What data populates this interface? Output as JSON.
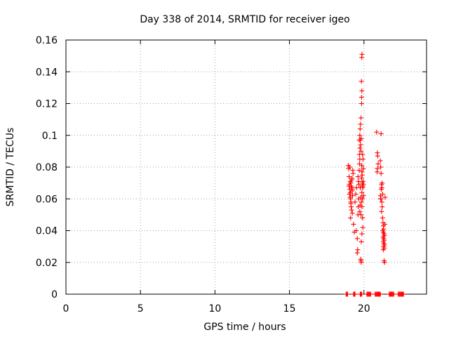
{
  "chart_data": {
    "type": "scatter",
    "title": "Day 338 of 2014, SRMTID for receiver igeo",
    "xlabel": "GPS time / hours",
    "ylabel": "SRMTID / TECUs",
    "xlim": [
      0,
      24.2
    ],
    "ylim": [
      0,
      0.16
    ],
    "xticks": [
      0,
      5,
      10,
      15,
      20
    ],
    "yticks": [
      0,
      0.02,
      0.04,
      0.06,
      0.08,
      0.1,
      0.12,
      0.14,
      0.16
    ],
    "ytick_labels": [
      "0",
      "0.02",
      "0.04",
      "0.06",
      "0.08",
      "0.1",
      "0.12",
      "0.14",
      "0.16"
    ],
    "xtick_labels": [
      "0",
      "5",
      "10",
      "15",
      "20"
    ],
    "grid": true,
    "legend": false,
    "marker": "+",
    "color": "#ff0000",
    "series": [
      {
        "values": [
          [
            18.95,
            0.081
          ],
          [
            18.97,
            0.079
          ],
          [
            19.0,
            0.074
          ],
          [
            19.02,
            0.069
          ],
          [
            19.05,
            0.066
          ],
          [
            19.03,
            0.063
          ],
          [
            19.07,
            0.061
          ],
          [
            19.1,
            0.06
          ],
          [
            19.12,
            0.058
          ],
          [
            19.08,
            0.071
          ],
          [
            19.12,
            0.07
          ],
          [
            19.15,
            0.068
          ],
          [
            19.18,
            0.067
          ],
          [
            19.2,
            0.065
          ],
          [
            19.14,
            0.055
          ],
          [
            19.17,
            0.053
          ],
          [
            19.22,
            0.051
          ],
          [
            19.1,
            0.048
          ],
          [
            19.25,
            0.078
          ],
          [
            19.27,
            0.076
          ],
          [
            19.2,
            0.073
          ],
          [
            19.23,
            0.062
          ],
          [
            19.3,
            0.044
          ],
          [
            19.35,
            0.039
          ],
          [
            19.05,
            0.08
          ],
          [
            19.0,
            0.068
          ],
          [
            19.09,
            0.064
          ],
          [
            19.13,
            0.057
          ],
          [
            19.18,
            0.072
          ],
          [
            19.21,
            0.066
          ],
          [
            19.4,
            0.058
          ],
          [
            19.45,
            0.063
          ],
          [
            19.5,
            0.067
          ],
          [
            19.48,
            0.04
          ],
          [
            19.55,
            0.035
          ],
          [
            19.58,
            0.028
          ],
          [
            19.55,
            0.026
          ],
          [
            19.6,
            0.05
          ],
          [
            19.62,
            0.055
          ],
          [
            19.65,
            0.06
          ],
          [
            19.6,
            0.074
          ],
          [
            19.63,
            0.071
          ],
          [
            19.66,
            0.069
          ],
          [
            19.68,
            0.078
          ],
          [
            19.7,
            0.082
          ],
          [
            19.72,
            0.085
          ],
          [
            19.7,
            0.088
          ],
          [
            19.73,
            0.092
          ],
          [
            19.75,
            0.097
          ],
          [
            19.68,
            0.097
          ],
          [
            19.72,
            0.1
          ],
          [
            19.74,
            0.104
          ],
          [
            19.77,
            0.107
          ],
          [
            19.8,
            0.111
          ],
          [
            19.78,
            0.094
          ],
          [
            19.82,
            0.098
          ],
          [
            19.8,
            0.09
          ],
          [
            19.85,
            0.081
          ],
          [
            19.86,
            0.077
          ],
          [
            19.88,
            0.075
          ],
          [
            19.84,
            0.073
          ],
          [
            19.88,
            0.07
          ],
          [
            19.9,
            0.068
          ],
          [
            19.92,
            0.067
          ],
          [
            19.86,
            0.064
          ],
          [
            19.9,
            0.06
          ],
          [
            19.83,
            0.058
          ],
          [
            19.86,
            0.055
          ],
          [
            19.8,
            0.05
          ],
          [
            19.9,
            0.048
          ],
          [
            19.92,
            0.042
          ],
          [
            19.86,
            0.038
          ],
          [
            19.82,
            0.033
          ],
          [
            19.78,
            0.022
          ],
          [
            19.8,
            0.021
          ],
          [
            19.82,
            0.02
          ],
          [
            19.84,
            0.12
          ],
          [
            19.84,
            0.124
          ],
          [
            19.86,
            0.128
          ],
          [
            19.83,
            0.134
          ],
          [
            19.85,
            0.149
          ],
          [
            19.87,
            0.151
          ],
          [
            19.76,
            0.067
          ],
          [
            19.78,
            0.061
          ],
          [
            19.74,
            0.056
          ],
          [
            19.72,
            0.052
          ],
          [
            19.95,
            0.079
          ],
          [
            19.94,
            0.071
          ],
          [
            19.96,
            0.069
          ],
          [
            19.93,
            0.085
          ],
          [
            19.9,
            0.088
          ],
          [
            19.97,
            0.062
          ],
          [
            20.85,
            0.102
          ],
          [
            21.15,
            0.101
          ],
          [
            20.9,
            0.089
          ],
          [
            20.92,
            0.087
          ],
          [
            20.95,
            0.082
          ],
          [
            20.9,
            0.079
          ],
          [
            20.88,
            0.077
          ],
          [
            21.1,
            0.084
          ],
          [
            21.12,
            0.08
          ],
          [
            21.15,
            0.076
          ],
          [
            21.18,
            0.069
          ],
          [
            21.2,
            0.067
          ],
          [
            21.16,
            0.066
          ],
          [
            21.1,
            0.062
          ],
          [
            21.12,
            0.06
          ],
          [
            21.14,
            0.06
          ],
          [
            21.2,
            0.058
          ],
          [
            21.22,
            0.055
          ],
          [
            21.18,
            0.052
          ],
          [
            21.25,
            0.048
          ],
          [
            21.28,
            0.045
          ],
          [
            21.3,
            0.043
          ],
          [
            21.32,
            0.041
          ],
          [
            21.26,
            0.04
          ],
          [
            21.3,
            0.039
          ],
          [
            21.35,
            0.038
          ],
          [
            21.28,
            0.036
          ],
          [
            21.32,
            0.035
          ],
          [
            21.36,
            0.034
          ],
          [
            21.3,
            0.033
          ],
          [
            21.34,
            0.032
          ],
          [
            21.38,
            0.031
          ],
          [
            21.32,
            0.03
          ],
          [
            21.36,
            0.029
          ],
          [
            21.3,
            0.028
          ],
          [
            21.4,
            0.044
          ],
          [
            21.38,
            0.037
          ],
          [
            21.42,
            0.061
          ],
          [
            21.35,
            0.021
          ],
          [
            21.38,
            0.02
          ],
          [
            21.25,
            0.063
          ],
          [
            21.22,
            0.07
          ]
        ]
      }
    ],
    "zero_markers_x": [
      18.8,
      18.85,
      18.9,
      19.3,
      19.35,
      19.4,
      19.75,
      19.8,
      19.85,
      20.2,
      20.25,
      20.3,
      20.35,
      20.4,
      20.45,
      20.75,
      20.8,
      20.85,
      20.9,
      20.95,
      21.0,
      21.05,
      21.1,
      21.7,
      21.75,
      21.8,
      21.85,
      21.9,
      21.95,
      22.0,
      22.3,
      22.35,
      22.4,
      22.45,
      22.5,
      22.55,
      22.6,
      22.65
    ]
  }
}
